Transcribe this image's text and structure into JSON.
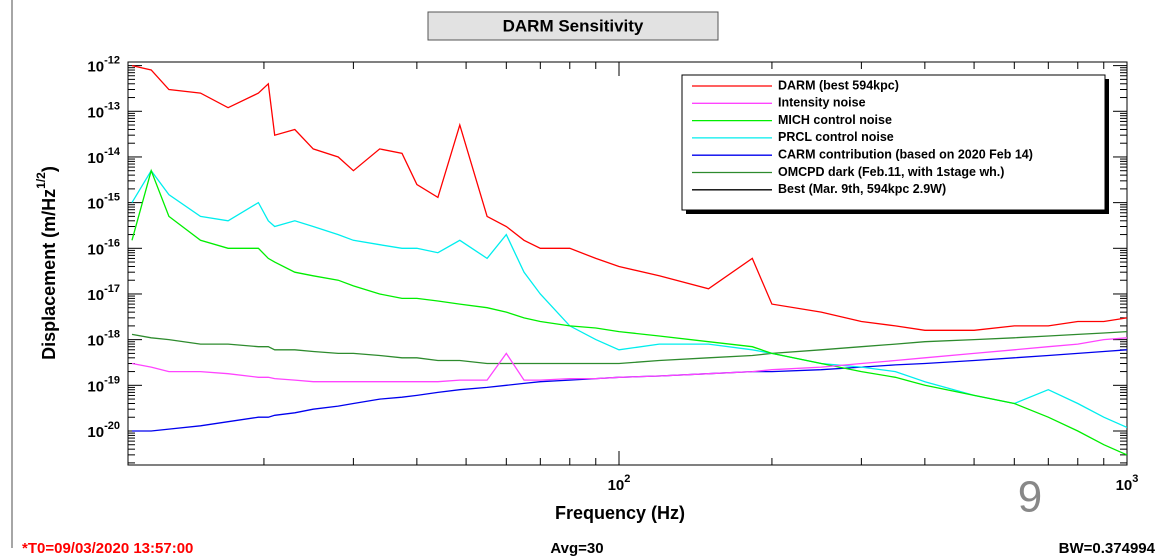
{
  "chart_data": {
    "type": "line",
    "title": "DARM Sensitivity",
    "x_label": "Frequency (Hz)",
    "y_label": {
      "text": "Displacement (m/Hz",
      "sup": "1/2",
      "end": ")"
    },
    "footer": {
      "left": "*T0=09/03/2020 13:57:00",
      "center": "Avg=30",
      "right": "BW=0.374994"
    },
    "page_number": "9",
    "log_x": true,
    "log_y": true,
    "legend": "top-right",
    "xlim": [
      10.8,
      1000
    ],
    "ylim": [
      1.8e-21,
      1.2e-12
    ],
    "xticks": [
      {
        "value": 100,
        "base": "10",
        "exp": "2"
      },
      {
        "value": 1000,
        "base": "10",
        "exp": "3"
      }
    ],
    "yticks": [
      {
        "value": 1e-12,
        "base": "10",
        "exp": "-12"
      },
      {
        "value": 1e-13,
        "base": "10",
        "exp": "-13"
      },
      {
        "value": 1e-14,
        "base": "10",
        "exp": "-14"
      },
      {
        "value": 1e-15,
        "base": "10",
        "exp": "-15"
      },
      {
        "value": 1e-16,
        "base": "10",
        "exp": "-16"
      },
      {
        "value": 1e-17,
        "base": "10",
        "exp": "-17"
      },
      {
        "value": 1e-18,
        "base": "10",
        "exp": "-18"
      },
      {
        "value": 1e-19,
        "base": "10",
        "exp": "-19"
      },
      {
        "value": 1e-20,
        "base": "10",
        "exp": "-20"
      }
    ],
    "x": [
      11,
      12,
      13,
      15,
      17,
      19.5,
      20.4,
      21,
      23,
      25,
      28,
      30,
      33.8,
      37.4,
      40,
      44,
      48.6,
      55,
      60,
      65,
      70,
      80,
      90,
      100,
      120,
      150,
      183,
      200,
      250,
      300,
      350,
      400,
      500,
      600,
      700,
      800,
      900,
      1000
    ],
    "series": [
      {
        "name": "DARM (best 594kpc)",
        "color": "#ff0000",
        "values": [
          1e-12,
          8e-13,
          3e-13,
          2.5e-13,
          1.2e-13,
          2.5e-13,
          4e-13,
          3e-14,
          4e-14,
          1.5e-14,
          1e-14,
          5e-15,
          1.5e-14,
          1.2e-14,
          2.5e-15,
          1.3e-15,
          5e-14,
          5e-16,
          3e-16,
          1.5e-16,
          1e-16,
          1e-16,
          6e-17,
          4e-17,
          2.5e-17,
          1.3e-17,
          6e-17,
          6e-18,
          4e-18,
          2.5e-18,
          2e-18,
          1.6e-18,
          1.6e-18,
          2e-18,
          2e-18,
          2.5e-18,
          2.5e-18,
          3e-18
        ]
      },
      {
        "name": "Intensity noise",
        "color": "#ff44ff",
        "values": [
          3e-19,
          2.5e-19,
          2e-19,
          2e-19,
          1.8e-19,
          1.5e-19,
          1.5e-19,
          1.4e-19,
          1.3e-19,
          1.2e-19,
          1.2e-19,
          1.2e-19,
          1.2e-19,
          1.2e-19,
          1.2e-19,
          1.2e-19,
          1.3e-19,
          1.3e-19,
          5e-19,
          1.3e-19,
          1.3e-19,
          1.4e-19,
          1.4e-19,
          1.5e-19,
          1.6e-19,
          1.8e-19,
          2e-19,
          2.2e-19,
          2.5e-19,
          3e-19,
          3.5e-19,
          4e-19,
          5e-19,
          6e-19,
          7e-19,
          8e-19,
          1e-18,
          1.1e-18
        ]
      },
      {
        "name": "MICH control noise",
        "color": "#00ee00",
        "values": [
          1.5e-16,
          5e-15,
          5e-16,
          1.5e-16,
          1e-16,
          1e-16,
          6e-17,
          5e-17,
          3e-17,
          2.5e-17,
          2e-17,
          1.5e-17,
          1e-17,
          8e-18,
          8e-18,
          7e-18,
          6e-18,
          5e-18,
          4e-18,
          3e-18,
          2.5e-18,
          2e-18,
          1.8e-18,
          1.5e-18,
          1.2e-18,
          9e-19,
          7e-19,
          5e-19,
          3e-19,
          2e-19,
          1.5e-19,
          1e-19,
          6e-20,
          4e-20,
          2e-20,
          1e-20,
          5e-21,
          3e-21
        ]
      },
      {
        "name": "PRCL control noise",
        "color": "#00eeee",
        "values": [
          1e-15,
          5e-15,
          1.5e-15,
          5e-16,
          4e-16,
          1e-15,
          4e-16,
          3e-16,
          4e-16,
          3e-16,
          2e-16,
          1.5e-16,
          1.2e-16,
          1e-16,
          1e-16,
          8e-17,
          1.5e-16,
          6e-17,
          2e-16,
          3e-17,
          1e-17,
          2e-18,
          1e-18,
          6e-19,
          8e-19,
          8e-19,
          6e-19,
          5e-19,
          3e-19,
          2.5e-19,
          2e-19,
          1.2e-19,
          6e-20,
          4e-20,
          8e-20,
          4e-20,
          2e-20,
          1.2e-20
        ]
      },
      {
        "name": "CARM contribution (based on 2020 Feb 14)",
        "color": "#0000ee",
        "values": [
          1e-20,
          1e-20,
          1.1e-20,
          1.3e-20,
          1.6e-20,
          2e-20,
          2e-20,
          2.2e-20,
          2.5e-20,
          3e-20,
          3.5e-20,
          4e-20,
          5e-20,
          5.5e-20,
          6e-20,
          7e-20,
          8e-20,
          9e-20,
          1e-19,
          1.1e-19,
          1.2e-19,
          1.3e-19,
          1.4e-19,
          1.5e-19,
          1.6e-19,
          1.8e-19,
          2e-19,
          2e-19,
          2.2e-19,
          2.5e-19,
          2.8e-19,
          3e-19,
          3.5e-19,
          4e-19,
          4.5e-19,
          5e-19,
          5.5e-19,
          6e-19
        ]
      },
      {
        "name": "OMCPD dark (Feb.11, with 1stage wh.)",
        "color": "#2e8b2e",
        "values": [
          1.3e-18,
          1.1e-18,
          1e-18,
          8e-19,
          8e-19,
          7e-19,
          7e-19,
          6e-19,
          6e-19,
          5.5e-19,
          5e-19,
          5e-19,
          4.5e-19,
          4e-19,
          4e-19,
          3.5e-19,
          3.5e-19,
          3e-19,
          3e-19,
          3e-19,
          3e-19,
          3e-19,
          3e-19,
          3e-19,
          3.5e-19,
          4e-19,
          4.5e-19,
          5e-19,
          6e-19,
          7e-19,
          8e-19,
          9e-19,
          1e-18,
          1.1e-18,
          1.2e-18,
          1.3e-18,
          1.4e-18,
          1.5e-18
        ]
      },
      {
        "name": "Best (Mar. 9th, 594kpc 2.9W)",
        "color": "#000000"
      }
    ]
  }
}
